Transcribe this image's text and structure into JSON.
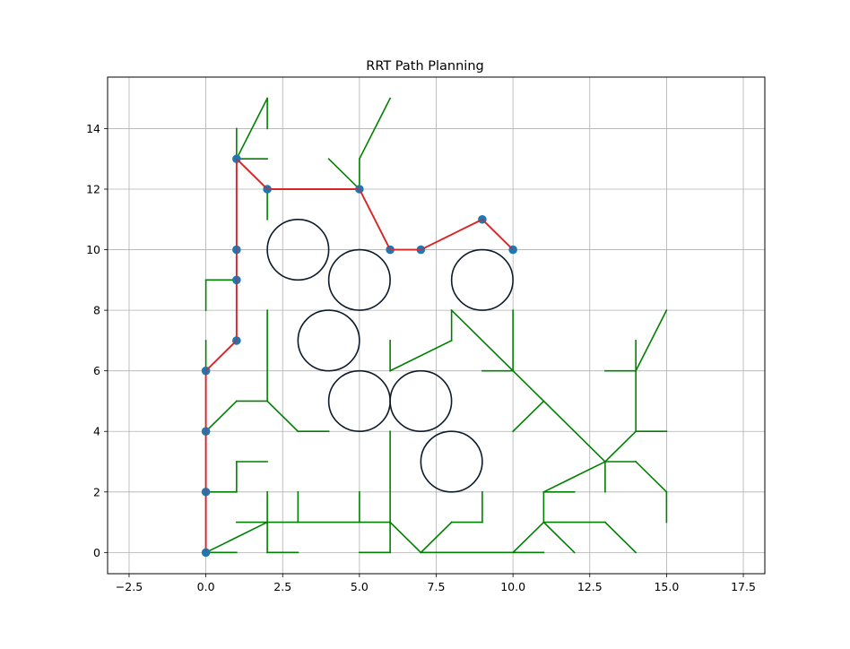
{
  "chart_data": {
    "type": "scatter",
    "title": "RRT Path Planning",
    "xlabel": "",
    "ylabel": "",
    "xlim": [
      -3.2,
      18.2
    ],
    "ylim": [
      -0.7,
      15.7
    ],
    "xticks": [
      -2.5,
      0.0,
      2.5,
      5.0,
      7.5,
      10.0,
      12.5,
      15.0,
      17.5
    ],
    "xtick_labels": [
      "−2.5",
      "0.0",
      "2.5",
      "5.0",
      "7.5",
      "10.0",
      "12.5",
      "15.0",
      "17.5"
    ],
    "yticks": [
      0,
      2,
      4,
      6,
      8,
      10,
      12,
      14
    ],
    "ytick_labels": [
      "0",
      "2",
      "4",
      "6",
      "8",
      "10",
      "12",
      "14"
    ],
    "grid": true,
    "legend": "none",
    "colors": {
      "tree": "#008000",
      "path": "#d62728",
      "node": "#1f77b4",
      "obstacle": "#0d1b2a",
      "grid": "#b0b0b0"
    },
    "obstacles": [
      {
        "cx": 3,
        "cy": 10,
        "r": 1
      },
      {
        "cx": 5,
        "cy": 9,
        "r": 1
      },
      {
        "cx": 9,
        "cy": 9,
        "r": 1
      },
      {
        "cx": 4,
        "cy": 7,
        "r": 1
      },
      {
        "cx": 5,
        "cy": 5,
        "r": 1
      },
      {
        "cx": 7,
        "cy": 5,
        "r": 1
      },
      {
        "cx": 8,
        "cy": 3,
        "r": 1
      }
    ],
    "tree_edges": [
      [
        [
          0,
          0
        ],
        [
          1,
          0
        ]
      ],
      [
        [
          0,
          0
        ],
        [
          2,
          1
        ]
      ],
      [
        [
          2,
          1
        ],
        [
          2,
          2
        ]
      ],
      [
        [
          2,
          1
        ],
        [
          2,
          0
        ]
      ],
      [
        [
          2,
          0
        ],
        [
          3,
          0
        ]
      ],
      [
        [
          1,
          1
        ],
        [
          6,
          1
        ]
      ],
      [
        [
          3,
          1
        ],
        [
          3,
          2
        ]
      ],
      [
        [
          5,
          1
        ],
        [
          5,
          2
        ]
      ],
      [
        [
          6,
          1
        ],
        [
          6,
          4
        ]
      ],
      [
        [
          6,
          1
        ],
        [
          7,
          0
        ]
      ],
      [
        [
          5,
          0
        ],
        [
          6,
          0
        ]
      ],
      [
        [
          6,
          0
        ],
        [
          6,
          1
        ]
      ],
      [
        [
          7,
          0
        ],
        [
          11,
          0
        ]
      ],
      [
        [
          7,
          0
        ],
        [
          8,
          1
        ]
      ],
      [
        [
          8,
          1
        ],
        [
          9,
          1
        ]
      ],
      [
        [
          9,
          1
        ],
        [
          9,
          2
        ]
      ],
      [
        [
          10,
          0
        ],
        [
          11,
          1
        ]
      ],
      [
        [
          11,
          1
        ],
        [
          11,
          2
        ]
      ],
      [
        [
          11,
          2
        ],
        [
          12,
          2
        ]
      ],
      [
        [
          11,
          1
        ],
        [
          12,
          0
        ]
      ],
      [
        [
          11,
          1
        ],
        [
          13,
          1
        ]
      ],
      [
        [
          13,
          1
        ],
        [
          14,
          0
        ]
      ],
      [
        [
          11,
          2
        ],
        [
          13,
          3
        ]
      ],
      [
        [
          13,
          3
        ],
        [
          13,
          2
        ]
      ],
      [
        [
          13,
          3
        ],
        [
          14,
          3
        ]
      ],
      [
        [
          14,
          3
        ],
        [
          15,
          2
        ]
      ],
      [
        [
          15,
          2
        ],
        [
          15,
          1
        ]
      ],
      [
        [
          13,
          3
        ],
        [
          14,
          4
        ]
      ],
      [
        [
          14,
          4
        ],
        [
          15,
          4
        ]
      ],
      [
        [
          14,
          4
        ],
        [
          14,
          7
        ]
      ],
      [
        [
          13,
          6
        ],
        [
          14,
          6
        ]
      ],
      [
        [
          14,
          6
        ],
        [
          15,
          8
        ]
      ],
      [
        [
          13,
          3
        ],
        [
          8,
          8
        ]
      ],
      [
        [
          8,
          8
        ],
        [
          8,
          7
        ]
      ],
      [
        [
          8,
          7
        ],
        [
          6,
          6
        ]
      ],
      [
        [
          6,
          6
        ],
        [
          6,
          7
        ]
      ],
      [
        [
          10,
          6
        ],
        [
          10,
          8
        ]
      ],
      [
        [
          9,
          6
        ],
        [
          10,
          6
        ]
      ],
      [
        [
          10,
          4
        ],
        [
          11,
          5
        ]
      ],
      [
        [
          0,
          2
        ],
        [
          1,
          2
        ]
      ],
      [
        [
          1,
          2
        ],
        [
          1,
          3
        ]
      ],
      [
        [
          1,
          3
        ],
        [
          2,
          3
        ]
      ],
      [
        [
          0,
          4
        ],
        [
          1,
          5
        ]
      ],
      [
        [
          1,
          5
        ],
        [
          2,
          5
        ]
      ],
      [
        [
          2,
          5
        ],
        [
          2,
          8
        ]
      ],
      [
        [
          2,
          5
        ],
        [
          3,
          4
        ]
      ],
      [
        [
          3,
          4
        ],
        [
          4,
          4
        ]
      ],
      [
        [
          0,
          6
        ],
        [
          0,
          7
        ]
      ],
      [
        [
          0,
          8
        ],
        [
          0,
          9
        ]
      ],
      [
        [
          0,
          9
        ],
        [
          1,
          9
        ]
      ],
      [
        [
          1,
          13
        ],
        [
          1,
          14
        ]
      ],
      [
        [
          1,
          13
        ],
        [
          2,
          13
        ]
      ],
      [
        [
          1,
          13
        ],
        [
          2,
          15
        ]
      ],
      [
        [
          2,
          15
        ],
        [
          2,
          14
        ]
      ],
      [
        [
          2,
          12
        ],
        [
          2,
          11
        ]
      ],
      [
        [
          5,
          12
        ],
        [
          4,
          13
        ]
      ],
      [
        [
          5,
          12
        ],
        [
          5,
          13
        ]
      ],
      [
        [
          5,
          13
        ],
        [
          6,
          15
        ]
      ]
    ],
    "path": [
      [
        0,
        0
      ],
      [
        0,
        2
      ],
      [
        0,
        4
      ],
      [
        0,
        6
      ],
      [
        1,
        7
      ],
      [
        1,
        9
      ],
      [
        1,
        10
      ],
      [
        1,
        13
      ],
      [
        2,
        12
      ],
      [
        5,
        12
      ],
      [
        6,
        10
      ],
      [
        7,
        10
      ],
      [
        9,
        11
      ],
      [
        10,
        10
      ]
    ]
  }
}
